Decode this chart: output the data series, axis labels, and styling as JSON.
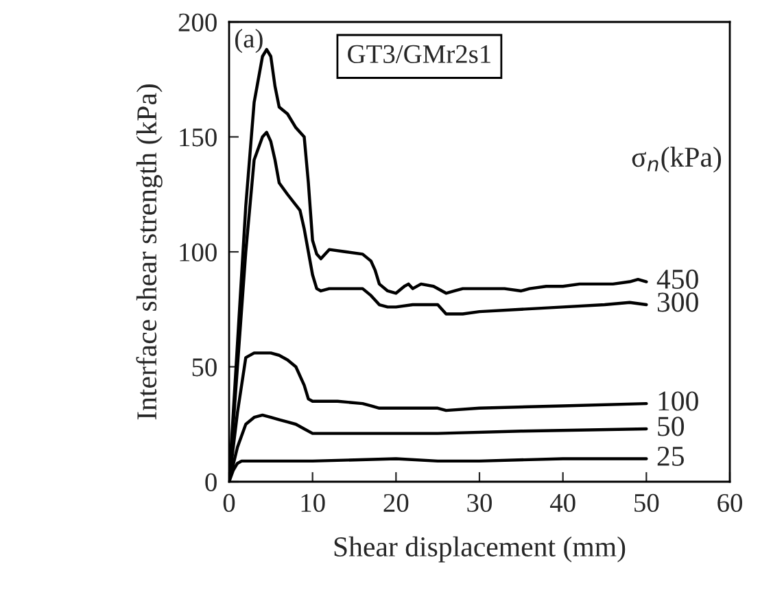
{
  "chart_data": {
    "type": "line",
    "xlabel": "Shear displacement (mm)",
    "ylabel": "Interface shear strength (kPa)",
    "legend_title": "σ$_{n}$(kPa)",
    "annotations": [
      "(a)",
      "GT3/GMr2s1"
    ],
    "xlim": [
      0,
      60
    ],
    "ylim": [
      0,
      200
    ],
    "xticks": [
      0,
      10,
      20,
      30,
      40,
      50,
      60
    ],
    "yticks": [
      0,
      50,
      100,
      150,
      200
    ],
    "grid": false,
    "legend": false,
    "marker": "none",
    "line_style": "solid",
    "series": [
      {
        "name": "450",
        "color": "#000000",
        "x": [
          0,
          1,
          2,
          3,
          4,
          4.5,
          5,
          5.5,
          6,
          7,
          8,
          9,
          9.5,
          10,
          10.5,
          11,
          12,
          14,
          16,
          17,
          17.5,
          18,
          19,
          20,
          21,
          21.5,
          22,
          23,
          24.5,
          26,
          27,
          28,
          30,
          33,
          35,
          36,
          38,
          40,
          42,
          44,
          46,
          48,
          49,
          50
        ],
        "values": [
          0,
          60,
          120,
          165,
          185,
          188,
          185,
          172,
          163,
          160,
          154,
          150,
          130,
          105,
          99,
          97,
          101,
          100,
          99,
          96,
          92,
          86,
          83,
          82,
          85,
          86,
          84,
          86,
          85,
          82,
          83,
          84,
          84,
          84,
          83,
          84,
          85,
          85,
          86,
          86,
          86,
          87,
          88,
          87
        ]
      },
      {
        "name": "300",
        "color": "#000000",
        "x": [
          0,
          1,
          2,
          3,
          4,
          4.5,
          5,
          5.5,
          6,
          7,
          8.5,
          9,
          9.5,
          10,
          10.5,
          11,
          12,
          14,
          16,
          17,
          18,
          19,
          20,
          22,
          25,
          26,
          28,
          30,
          35,
          40,
          45,
          48,
          50
        ],
        "values": [
          0,
          50,
          100,
          140,
          150,
          152,
          148,
          140,
          130,
          125,
          118,
          110,
          100,
          90,
          84,
          83,
          84,
          84,
          84,
          81,
          77,
          76,
          76,
          77,
          77,
          73,
          73,
          74,
          75,
          76,
          77,
          78,
          77
        ]
      },
      {
        "name": "100",
        "color": "#000000",
        "x": [
          0,
          1,
          2,
          3,
          4,
          5,
          6,
          7,
          8,
          9,
          9.5,
          10,
          13,
          16,
          17,
          18,
          20,
          25,
          26,
          30,
          40,
          50
        ],
        "values": [
          0,
          30,
          54,
          56,
          56,
          56,
          55,
          53,
          50,
          42,
          36,
          35,
          35,
          34,
          33,
          32,
          32,
          32,
          31,
          32,
          33,
          34
        ]
      },
      {
        "name": "50",
        "color": "#000000",
        "x": [
          0,
          1,
          2,
          3,
          4,
          5,
          6,
          7,
          8,
          9,
          10,
          15,
          25,
          35,
          50
        ],
        "values": [
          0,
          15,
          25,
          28,
          29,
          28,
          27,
          26,
          25,
          23,
          21,
          21,
          21,
          22,
          23
        ]
      },
      {
        "name": "25",
        "color": "#000000",
        "x": [
          0,
          0.5,
          1,
          1.5,
          2,
          10,
          20,
          25,
          30,
          40,
          50
        ],
        "values": [
          0,
          5,
          8,
          9,
          9,
          9,
          10,
          9,
          9,
          10,
          10
        ]
      }
    ]
  }
}
